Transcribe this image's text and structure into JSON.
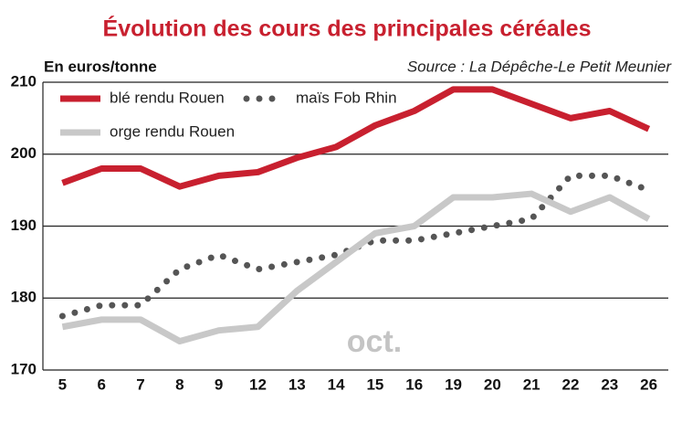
{
  "chart_data": {
    "type": "line",
    "title": "Évolution des cours des principales céréales",
    "y_axis_label": "En euros/tonne",
    "source": "Source : La Dépêche-Le Petit Meunier",
    "annotation": "oct.",
    "categories": [
      "5",
      "6",
      "7",
      "8",
      "9",
      "12",
      "13",
      "14",
      "15",
      "16",
      "19",
      "20",
      "21",
      "22",
      "23",
      "26"
    ],
    "series": [
      {
        "name": "blé rendu Rouen",
        "color": "#c8202f",
        "style": "solid",
        "values": [
          196,
          198,
          198,
          195.5,
          197,
          197.5,
          199.5,
          201,
          204,
          206,
          209,
          209,
          207,
          205,
          206,
          203.5
        ]
      },
      {
        "name": "maïs Fob Rhin",
        "color": "#555555",
        "style": "dotted",
        "values": [
          177.5,
          179,
          179,
          184,
          186,
          184,
          185,
          186,
          188,
          188,
          189,
          190,
          191,
          197,
          197,
          195
        ]
      },
      {
        "name": "orge rendu Rouen",
        "color": "#c8c8c8",
        "style": "solid",
        "values": [
          176,
          177,
          177,
          174,
          175.5,
          176,
          181,
          185,
          189,
          190,
          194,
          194,
          194.5,
          192,
          194,
          191
        ]
      }
    ],
    "ylim": [
      170,
      210
    ],
    "yticks": [
      170,
      180,
      190,
      200,
      210
    ],
    "grid": true,
    "legend": "top-left"
  }
}
